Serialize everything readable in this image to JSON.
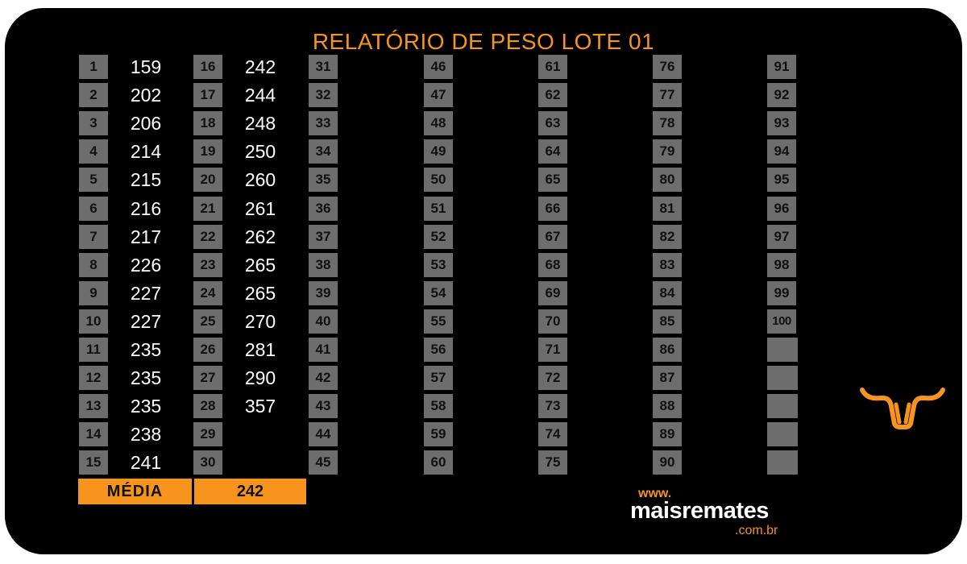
{
  "title": "RELATÓRIO DE PESO LOTE 01",
  "columns": [
    {
      "start": 1,
      "weights": [
        "159",
        "202",
        "206",
        "214",
        "215",
        "216",
        "217",
        "226",
        "227",
        "227",
        "235",
        "235",
        "235",
        "238",
        "241"
      ]
    },
    {
      "start": 16,
      "weights": [
        "242",
        "244",
        "248",
        "250",
        "260",
        "261",
        "262",
        "265",
        "265",
        "270",
        "281",
        "290",
        "357",
        "",
        ""
      ]
    },
    {
      "start": 31,
      "weights": []
    },
    {
      "start": 46,
      "weights": []
    },
    {
      "start": 61,
      "weights": []
    },
    {
      "start": 76,
      "weights": []
    },
    {
      "start": 91,
      "count": 10,
      "empty_slots": 5,
      "weights": []
    }
  ],
  "average": {
    "label": "MÉDIA",
    "value": "242"
  },
  "brand": {
    "www": "www.",
    "name": "maisremates",
    "tld": ".com.br",
    "icon": "bull-horns-icon"
  },
  "colors": {
    "accent": "#f7941d",
    "background": "#000000",
    "box": "#6d6d6d"
  }
}
